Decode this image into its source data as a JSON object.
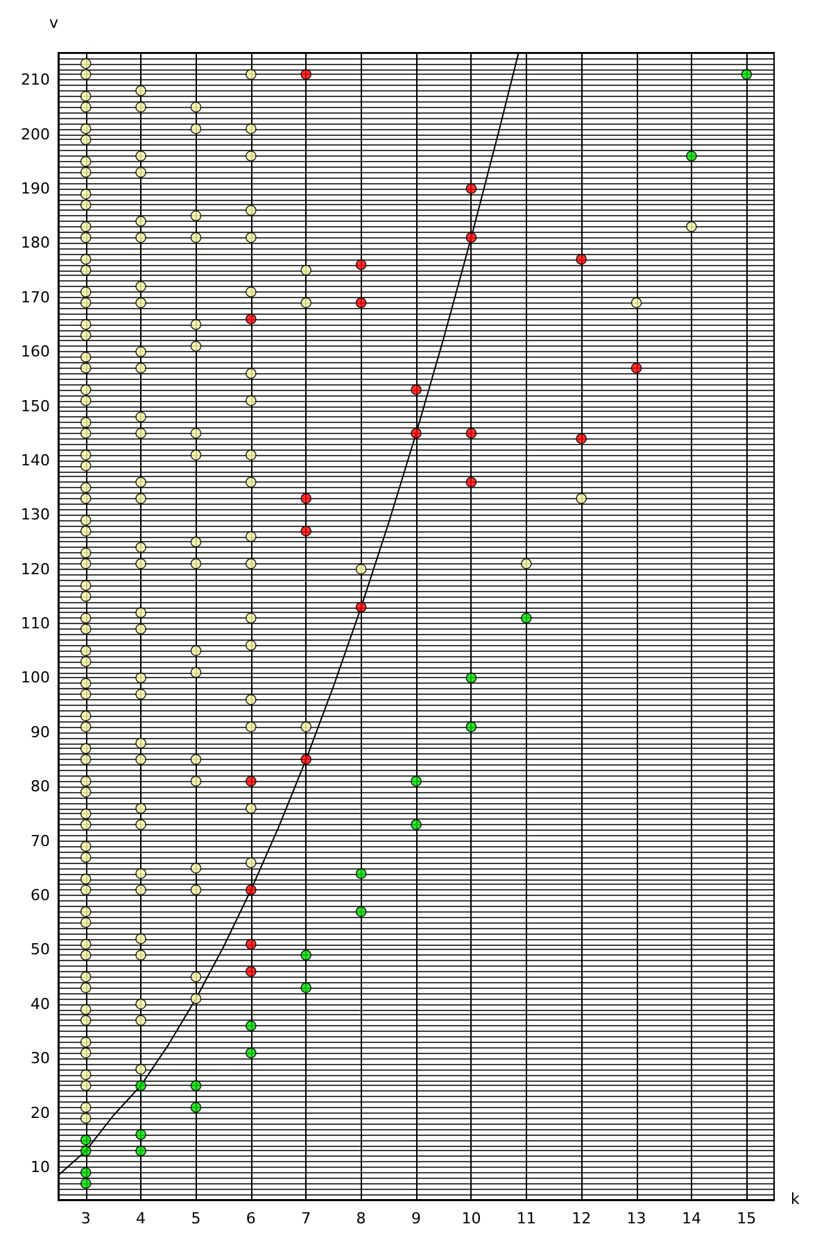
{
  "chart_data": {
    "type": "scatter",
    "xlabel": "k",
    "ylabel": "v",
    "xlim": [
      2.5,
      15.5
    ],
    "ylim": [
      4,
      215
    ],
    "xticks": [
      3,
      4,
      5,
      6,
      7,
      8,
      9,
      10,
      11,
      12,
      13,
      14,
      15
    ],
    "yticks": [
      {
        "value": 4,
        "label": null
      },
      {
        "value": 5,
        "label": null
      },
      {
        "value": 6,
        "label": null
      },
      {
        "value": 7,
        "label": null
      },
      {
        "value": 8,
        "label": null
      },
      {
        "value": 9,
        "label": null
      },
      10,
      {
        "value": 11,
        "label": null
      },
      {
        "value": 12,
        "label": null
      },
      {
        "value": 13,
        "label": null
      },
      {
        "value": 14,
        "label": null
      },
      {
        "value": 15,
        "label": null
      },
      {
        "value": 16,
        "label": null
      },
      {
        "value": 17,
        "label": null
      },
      {
        "value": 18,
        "label": null
      },
      {
        "value": 19,
        "label": null
      },
      20,
      {
        "value": 21,
        "label": null
      },
      {
        "value": 22,
        "label": null
      },
      {
        "value": 23,
        "label": null
      },
      {
        "value": 24,
        "label": null
      },
      {
        "value": 25,
        "label": null
      },
      {
        "value": 26,
        "label": null
      },
      {
        "value": 27,
        "label": null
      },
      {
        "value": 28,
        "label": null
      },
      {
        "value": 29,
        "label": null
      },
      30,
      {
        "value": 31,
        "label": null
      },
      {
        "value": 32,
        "label": null
      },
      {
        "value": 33,
        "label": null
      },
      {
        "value": 34,
        "label": null
      },
      {
        "value": 35,
        "label": null
      },
      {
        "value": 36,
        "label": null
      },
      {
        "value": 37,
        "label": null
      },
      {
        "value": 38,
        "label": null
      },
      {
        "value": 39,
        "label": null
      },
      40,
      {
        "value": 41,
        "label": null
      },
      {
        "value": 42,
        "label": null
      },
      {
        "value": 43,
        "label": null
      },
      {
        "value": 44,
        "label": null
      },
      {
        "value": 45,
        "label": null
      },
      {
        "value": 46,
        "label": null
      },
      {
        "value": 47,
        "label": null
      },
      {
        "value": 48,
        "label": null
      },
      {
        "value": 49,
        "label": null
      },
      50,
      {
        "value": 51,
        "label": null
      },
      {
        "value": 52,
        "label": null
      },
      {
        "value": 53,
        "label": null
      },
      {
        "value": 54,
        "label": null
      },
      {
        "value": 55,
        "label": null
      },
      {
        "value": 56,
        "label": null
      },
      {
        "value": 57,
        "label": null
      },
      {
        "value": 58,
        "label": null
      },
      {
        "value": 59,
        "label": null
      },
      60,
      {
        "value": 61,
        "label": null
      },
      {
        "value": 62,
        "label": null
      },
      {
        "value": 63,
        "label": null
      },
      {
        "value": 64,
        "label": null
      },
      {
        "value": 65,
        "label": null
      },
      {
        "value": 66,
        "label": null
      },
      {
        "value": 67,
        "label": null
      },
      {
        "value": 68,
        "label": null
      },
      {
        "value": 69,
        "label": null
      },
      70,
      {
        "value": 71,
        "label": null
      },
      {
        "value": 72,
        "label": null
      },
      {
        "value": 73,
        "label": null
      },
      {
        "value": 74,
        "label": null
      },
      {
        "value": 75,
        "label": null
      },
      {
        "value": 76,
        "label": null
      },
      {
        "value": 77,
        "label": null
      },
      {
        "value": 78,
        "label": null
      },
      {
        "value": 79,
        "label": null
      },
      80,
      {
        "value": 81,
        "label": null
      },
      {
        "value": 82,
        "label": null
      },
      {
        "value": 83,
        "label": null
      },
      {
        "value": 84,
        "label": null
      },
      {
        "value": 85,
        "label": null
      },
      {
        "value": 86,
        "label": null
      },
      {
        "value": 87,
        "label": null
      },
      {
        "value": 88,
        "label": null
      },
      {
        "value": 89,
        "label": null
      },
      90,
      {
        "value": 91,
        "label": null
      },
      {
        "value": 92,
        "label": null
      },
      {
        "value": 93,
        "label": null
      },
      {
        "value": 94,
        "label": null
      },
      {
        "value": 95,
        "label": null
      },
      {
        "value": 96,
        "label": null
      },
      {
        "value": 97,
        "label": null
      },
      {
        "value": 98,
        "label": null
      },
      {
        "value": 99,
        "label": null
      },
      100,
      {
        "value": 101,
        "label": null
      },
      {
        "value": 102,
        "label": null
      },
      {
        "value": 103,
        "label": null
      },
      {
        "value": 104,
        "label": null
      },
      {
        "value": 105,
        "label": null
      },
      {
        "value": 106,
        "label": null
      },
      {
        "value": 107,
        "label": null
      },
      {
        "value": 108,
        "label": null
      },
      {
        "value": 109,
        "label": null
      },
      110,
      {
        "value": 111,
        "label": null
      },
      {
        "value": 112,
        "label": null
      },
      {
        "value": 113,
        "label": null
      },
      {
        "value": 114,
        "label": null
      },
      {
        "value": 115,
        "label": null
      },
      {
        "value": 116,
        "label": null
      },
      {
        "value": 117,
        "label": null
      },
      {
        "value": 118,
        "label": null
      },
      {
        "value": 119,
        "label": null
      },
      120,
      {
        "value": 121,
        "label": null
      },
      {
        "value": 122,
        "label": null
      },
      {
        "value": 123,
        "label": null
      },
      {
        "value": 124,
        "label": null
      },
      {
        "value": 125,
        "label": null
      },
      {
        "value": 126,
        "label": null
      },
      {
        "value": 127,
        "label": null
      },
      {
        "value": 128,
        "label": null
      },
      {
        "value": 129,
        "label": null
      },
      130,
      {
        "value": 131,
        "label": null
      },
      {
        "value": 132,
        "label": null
      },
      {
        "value": 133,
        "label": null
      },
      {
        "value": 134,
        "label": null
      },
      {
        "value": 135,
        "label": null
      },
      {
        "value": 136,
        "label": null
      },
      {
        "value": 137,
        "label": null
      },
      {
        "value": 138,
        "label": null
      },
      {
        "value": 139,
        "label": null
      },
      140,
      {
        "value": 141,
        "label": null
      },
      {
        "value": 142,
        "label": null
      },
      {
        "value": 143,
        "label": null
      },
      {
        "value": 144,
        "label": null
      },
      {
        "value": 145,
        "label": null
      },
      {
        "value": 146,
        "label": null
      },
      {
        "value": 147,
        "label": null
      },
      {
        "value": 148,
        "label": null
      },
      {
        "value": 149,
        "label": null
      },
      150,
      {
        "value": 151,
        "label": null
      },
      {
        "value": 152,
        "label": null
      },
      {
        "value": 153,
        "label": null
      },
      {
        "value": 154,
        "label": null
      },
      {
        "value": 155,
        "label": null
      },
      {
        "value": 156,
        "label": null
      },
      {
        "value": 157,
        "label": null
      },
      {
        "value": 158,
        "label": null
      },
      {
        "value": 159,
        "label": null
      },
      160,
      {
        "value": 161,
        "label": null
      },
      {
        "value": 162,
        "label": null
      },
      {
        "value": 163,
        "label": null
      },
      {
        "value": 164,
        "label": null
      },
      {
        "value": 165,
        "label": null
      },
      {
        "value": 166,
        "label": null
      },
      {
        "value": 167,
        "label": null
      },
      {
        "value": 168,
        "label": null
      },
      {
        "value": 169,
        "label": null
      },
      170,
      {
        "value": 171,
        "label": null
      },
      {
        "value": 172,
        "label": null
      },
      {
        "value": 173,
        "label": null
      },
      {
        "value": 174,
        "label": null
      },
      {
        "value": 175,
        "label": null
      },
      {
        "value": 176,
        "label": null
      },
      {
        "value": 177,
        "label": null
      },
      {
        "value": 178,
        "label": null
      },
      {
        "value": 179,
        "label": null
      },
      180,
      {
        "value": 181,
        "label": null
      },
      {
        "value": 182,
        "label": null
      },
      {
        "value": 183,
        "label": null
      },
      {
        "value": 184,
        "label": null
      },
      {
        "value": 185,
        "label": null
      },
      {
        "value": 186,
        "label": null
      },
      {
        "value": 187,
        "label": null
      },
      {
        "value": 188,
        "label": null
      },
      {
        "value": 189,
        "label": null
      },
      190,
      {
        "value": 191,
        "label": null
      },
      {
        "value": 192,
        "label": null
      },
      {
        "value": 193,
        "label": null
      },
      {
        "value": 194,
        "label": null
      },
      {
        "value": 195,
        "label": null
      },
      {
        "value": 196,
        "label": null
      },
      {
        "value": 197,
        "label": null
      },
      {
        "value": 198,
        "label": null
      },
      {
        "value": 199,
        "label": null
      },
      200,
      {
        "value": 201,
        "label": null
      },
      {
        "value": 202,
        "label": null
      },
      {
        "value": 203,
        "label": null
      },
      {
        "value": 204,
        "label": null
      },
      {
        "value": 205,
        "label": null
      },
      {
        "value": 206,
        "label": null
      },
      {
        "value": 207,
        "label": null
      },
      {
        "value": 208,
        "label": null
      },
      {
        "value": 209,
        "label": null
      },
      210,
      {
        "value": 211,
        "label": null
      },
      {
        "value": 212,
        "label": null
      },
      {
        "value": 213,
        "label": null
      },
      {
        "value": 214,
        "label": null
      }
    ],
    "grid": true,
    "marker": "circle",
    "series": [
      {
        "color": "#ffffaa",
        "x": [
          3,
          3,
          3,
          3,
          3,
          3,
          3,
          3,
          3,
          3,
          3,
          3,
          3,
          3,
          3,
          3,
          3,
          3,
          3,
          3,
          3,
          3,
          3,
          3,
          3,
          3,
          3,
          3,
          3,
          3,
          3,
          3,
          3,
          3,
          3,
          3,
          3,
          3,
          3,
          3,
          3,
          3,
          3,
          3,
          3,
          3,
          3,
          3,
          3,
          3,
          3,
          3,
          3,
          3,
          3,
          3,
          3,
          3,
          3,
          3,
          3,
          3,
          3,
          3,
          3,
          3,
          4,
          4,
          4,
          4,
          4,
          4,
          4,
          4,
          4,
          4,
          4,
          4,
          4,
          4,
          4,
          4,
          4,
          4,
          4,
          4,
          4,
          4,
          4,
          4,
          4,
          4,
          4,
          4,
          4,
          4,
          4,
          5,
          5,
          5,
          5,
          5,
          5,
          5,
          5,
          5,
          5,
          5,
          5,
          5,
          5,
          5,
          5,
          5,
          5,
          6,
          6,
          6,
          6,
          6,
          6,
          6,
          6,
          6,
          6,
          6,
          6,
          6,
          6,
          6,
          6,
          6,
          6,
          7,
          7,
          7,
          8,
          11,
          12,
          13,
          14
        ],
        "values": [
          213,
          211,
          207,
          205,
          201,
          199,
          195,
          193,
          189,
          187,
          183,
          181,
          177,
          175,
          171,
          169,
          165,
          163,
          159,
          157,
          153,
          151,
          147,
          145,
          141,
          139,
          135,
          133,
          129,
          127,
          123,
          121,
          117,
          115,
          111,
          109,
          105,
          103,
          99,
          97,
          93,
          91,
          87,
          85,
          81,
          79,
          75,
          73,
          69,
          67,
          63,
          61,
          57,
          55,
          51,
          49,
          45,
          43,
          39,
          37,
          33,
          31,
          27,
          25,
          21,
          19,
          208,
          205,
          196,
          193,
          184,
          181,
          172,
          169,
          160,
          157,
          148,
          145,
          136,
          133,
          124,
          121,
          112,
          109,
          100,
          97,
          88,
          85,
          76,
          73,
          64,
          61,
          52,
          49,
          40,
          37,
          28,
          205,
          201,
          185,
          181,
          165,
          161,
          145,
          141,
          125,
          121,
          105,
          101,
          85,
          81,
          65,
          61,
          45,
          41,
          211,
          201,
          196,
          186,
          181,
          171,
          156,
          151,
          141,
          136,
          126,
          121,
          111,
          106,
          96,
          91,
          76,
          66,
          175,
          169,
          91,
          120,
          121,
          133,
          169,
          183
        ]
      },
      {
        "color": "#ff0000",
        "x": [
          6,
          6,
          6,
          6,
          6,
          7,
          7,
          7,
          7,
          8,
          8,
          8,
          9,
          9,
          10,
          10,
          10,
          10,
          12,
          12,
          13
        ],
        "values": [
          166,
          81,
          61,
          51,
          46,
          211,
          133,
          127,
          85,
          176,
          169,
          113,
          153,
          145,
          190,
          181,
          145,
          136,
          177,
          144,
          157
        ]
      },
      {
        "color": "#00dd00",
        "x": [
          3,
          3,
          3,
          3,
          4,
          4,
          4,
          5,
          5,
          6,
          6,
          7,
          7,
          8,
          8,
          9,
          9,
          10,
          10,
          11,
          14,
          15
        ],
        "values": [
          15,
          13,
          9,
          7,
          25,
          16,
          13,
          25,
          21,
          36,
          31,
          49,
          43,
          64,
          57,
          81,
          73,
          100,
          91,
          111,
          196,
          211
        ]
      },
      {
        "type": "line",
        "color": "#000000",
        "marker": "none",
        "x": [
          2.5,
          3,
          3.5,
          4,
          4.5,
          5,
          5.5,
          6,
          6.5,
          7,
          7.5,
          8,
          8.5,
          9,
          9.5,
          10,
          10.5,
          10.86
        ],
        "values": [
          8.5,
          13,
          19.5,
          25,
          32.5,
          41,
          50.5,
          61,
          72.5,
          85,
          98.5,
          113,
          128.5,
          145,
          162.5,
          181,
          200.5,
          215
        ]
      }
    ]
  }
}
